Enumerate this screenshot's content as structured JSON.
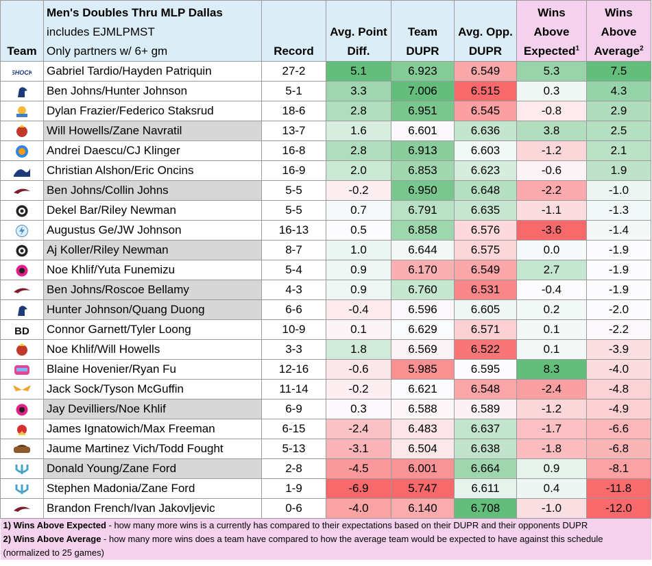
{
  "header": {
    "team": "Team",
    "title": "Men's Doubles Thru MLP Dallas",
    "subtitle1": "includes EJMLPMST",
    "subtitle2": "Only partners w/ 6+ gm",
    "record": "Record",
    "avg_point_diff_1": "Avg. Point",
    "avg_point_diff_2": "Diff.",
    "team_dupr_1": "Team",
    "team_dupr_2": "DUPR",
    "opp_dupr_1": "Avg. Opp.",
    "opp_dupr_2": "DUPR",
    "wae_1": "Wins",
    "wae_2": "Above",
    "wae_3": "Expected",
    "wae_sup": "1",
    "waa_1": "Wins",
    "waa_2": "Above",
    "waa_3": "Average",
    "waa_sup": "2"
  },
  "rows": [
    {
      "logo": "shock-logo",
      "logo_text": "SHOCK",
      "name": "Gabriel Tardio/Hayden Patriquin",
      "gray": false,
      "record": "27-2",
      "apd": "5.1",
      "dupr": "6.923",
      "opp": "6.549",
      "wae": "5.3",
      "waa": "7.5"
    },
    {
      "logo": "bird-logo",
      "logo_text": "",
      "name": "Ben Johns/Hunter Johnson",
      "gray": false,
      "record": "5-1",
      "apd": "3.3",
      "dupr": "7.006",
      "opp": "6.515",
      "wae": "0.3",
      "waa": "4.3"
    },
    {
      "logo": "sun-logo",
      "logo_text": "",
      "name": "Dylan Frazier/Federico Staksrud",
      "gray": false,
      "record": "18-6",
      "apd": "2.8",
      "dupr": "6.951",
      "opp": "6.545",
      "wae": "-0.8",
      "waa": "2.9"
    },
    {
      "logo": "chicken-logo",
      "logo_text": "",
      "name": "Will Howells/Zane Navratil",
      "gray": true,
      "record": "13-7",
      "apd": "1.6",
      "dupr": "6.601",
      "opp": "6.636",
      "wae": "3.8",
      "waa": "2.5"
    },
    {
      "logo": "circle-logo",
      "logo_text": "",
      "name": "Andrei Daescu/CJ Klinger",
      "gray": false,
      "record": "16-8",
      "apd": "2.8",
      "dupr": "6.913",
      "opp": "6.603",
      "wae": "-1.2",
      "waa": "2.1"
    },
    {
      "logo": "wave-logo",
      "logo_text": "",
      "name": "Christian Alshon/Eric Oncins",
      "gray": false,
      "record": "16-9",
      "apd": "2.0",
      "dupr": "6.853",
      "opp": "6.623",
      "wae": "-0.6",
      "waa": "1.9"
    },
    {
      "logo": "hawk-logo",
      "logo_text": "",
      "name": "Ben Johns/Collin Johns",
      "gray": true,
      "record": "5-5",
      "apd": "-0.2",
      "dupr": "6.950",
      "opp": "6.648",
      "wae": "-2.2",
      "waa": "-1.0"
    },
    {
      "logo": "badge-logo",
      "logo_text": "",
      "name": "Dekel Bar/Riley Newman",
      "gray": false,
      "record": "5-5",
      "apd": "0.7",
      "dupr": "6.791",
      "opp": "6.635",
      "wae": "-1.1",
      "waa": "-1.3"
    },
    {
      "logo": "bolt-logo",
      "logo_text": "",
      "name": "Augustus Ge/JW Johnson",
      "gray": false,
      "record": "16-13",
      "apd": "0.5",
      "dupr": "6.858",
      "opp": "6.576",
      "wae": "-3.6",
      "waa": "-1.4"
    },
    {
      "logo": "badge-logo",
      "logo_text": "",
      "name": "Aj Koller/Riley Newman",
      "gray": true,
      "record": "8-7",
      "apd": "1.0",
      "dupr": "6.644",
      "opp": "6.575",
      "wae": "0.0",
      "waa": "-1.9"
    },
    {
      "logo": "pink-logo",
      "logo_text": "",
      "name": "Noe Khlif/Yuta Funemizu",
      "gray": false,
      "record": "5-4",
      "apd": "0.9",
      "dupr": "6.170",
      "opp": "6.549",
      "wae": "2.7",
      "waa": "-1.9"
    },
    {
      "logo": "hawk-logo",
      "logo_text": "",
      "name": "Ben Johns/Roscoe Bellamy",
      "gray": true,
      "record": "4-3",
      "apd": "0.9",
      "dupr": "6.760",
      "opp": "6.531",
      "wae": "-0.4",
      "waa": "-1.9"
    },
    {
      "logo": "bird-logo",
      "logo_text": "",
      "name": "Hunter Johnson/Quang Duong",
      "gray": true,
      "record": "6-6",
      "apd": "-0.4",
      "dupr": "6.596",
      "opp": "6.605",
      "wae": "0.2",
      "waa": "-2.0"
    },
    {
      "logo": "bd-logo",
      "logo_text": "BD",
      "name": "Connor Garnett/Tyler Loong",
      "gray": false,
      "record": "10-9",
      "apd": "0.1",
      "dupr": "6.629",
      "opp": "6.571",
      "wae": "0.1",
      "waa": "-2.2"
    },
    {
      "logo": "chicken-logo",
      "logo_text": "",
      "name": "Noe Khlif/Will Howells",
      "gray": false,
      "record": "3-3",
      "apd": "1.8",
      "dupr": "6.569",
      "opp": "6.522",
      "wae": "0.1",
      "waa": "-3.9"
    },
    {
      "logo": "cyber-logo",
      "logo_text": "",
      "name": "Blaine Hovenier/Ryan Fu",
      "gray": false,
      "record": "12-16",
      "apd": "-0.6",
      "dupr": "5.985",
      "opp": "6.595",
      "wae": "8.3",
      "waa": "-4.0"
    },
    {
      "logo": "wings-logo",
      "logo_text": "",
      "name": "Jack Sock/Tyson McGuffin",
      "gray": false,
      "record": "11-14",
      "apd": "-0.2",
      "dupr": "6.621",
      "opp": "6.548",
      "wae": "-2.4",
      "waa": "-4.8"
    },
    {
      "logo": "pink-logo",
      "logo_text": "",
      "name": "Jay Devilliers/Noe Khlif",
      "gray": true,
      "record": "6-9",
      "apd": "0.3",
      "dupr": "6.588",
      "opp": "6.589",
      "wae": "-1.2",
      "waa": "-4.9"
    },
    {
      "logo": "red-logo",
      "logo_text": "",
      "name": "James Ignatowich/Max Freeman",
      "gray": false,
      "record": "6-15",
      "apd": "-2.4",
      "dupr": "6.483",
      "opp": "6.637",
      "wae": "-1.7",
      "waa": "-6.6"
    },
    {
      "logo": "outlaw-logo",
      "logo_text": "",
      "name": "Jaume Martinez Vich/Todd Fought",
      "gray": false,
      "record": "5-13",
      "apd": "-3.1",
      "dupr": "6.504",
      "opp": "6.638",
      "wae": "-1.8",
      "waa": "-6.8"
    },
    {
      "logo": "trident-logo",
      "logo_text": "",
      "name": "Donald Young/Zane Ford",
      "gray": true,
      "record": "2-8",
      "apd": "-4.5",
      "dupr": "6.001",
      "opp": "6.664",
      "wae": "0.9",
      "waa": "-8.1"
    },
    {
      "logo": "trident-logo",
      "logo_text": "",
      "name": "Stephen Madonia/Zane Ford",
      "gray": false,
      "record": "1-9",
      "apd": "-6.9",
      "dupr": "5.747",
      "opp": "6.611",
      "wae": "0.4",
      "waa": "-11.8"
    },
    {
      "logo": "hawk-logo",
      "logo_text": "",
      "name": "Brandon French/Ivan Jakovljevic",
      "gray": false,
      "record": "0-6",
      "apd": "-4.0",
      "dupr": "6.140",
      "opp": "6.708",
      "wae": "-1.0",
      "waa": "-12.0"
    }
  ],
  "footnotes": {
    "f1_bold": "1) Wins Above Expected",
    "f1_text": " - how many more wins is a currently has compared to their expectations based on their DUPR and their opponents DUPR",
    "f2_bold": "2) Wins Above Average",
    "f2_text": " - how many more wins does a team have compared to how the average team would be expected to have against this schedule",
    "f3_text": "(normalized to 25 games)"
  },
  "colors": {
    "header_blue": "#dbeef7",
    "header_pink": "#f4d1ec",
    "gray_name": "#d7d7d7",
    "green": "#63be7b",
    "red": "#f8696b",
    "white": "#fcfcff"
  }
}
